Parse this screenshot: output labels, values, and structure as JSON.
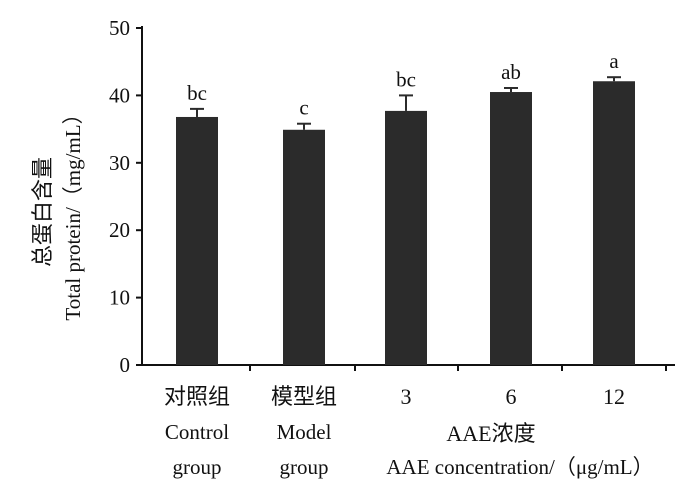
{
  "chart_data": {
    "type": "bar",
    "ylabel_cn": "总蛋白含量",
    "ylabel": "Total protein/（mg/mL）",
    "ylim": [
      0,
      50
    ],
    "yticks": [
      0,
      10,
      20,
      30,
      40,
      50
    ],
    "categories": [
      {
        "lines": [
          "对照组",
          "Control",
          "group"
        ]
      },
      {
        "lines": [
          "模型组",
          "Model",
          "group"
        ]
      },
      {
        "lines": [
          "3"
        ]
      },
      {
        "lines": [
          "6"
        ]
      },
      {
        "lines": [
          "12"
        ]
      }
    ],
    "values": [
      36.8,
      34.9,
      37.7,
      40.5,
      42.1
    ],
    "errors": [
      1.2,
      0.9,
      2.3,
      0.6,
      0.6
    ],
    "sig_labels": [
      "bc",
      "c",
      "bc",
      "ab",
      "a"
    ],
    "group_label_cn": "AAE浓度",
    "group_label": "AAE concentration/（μg/mL）",
    "bar_color": "#2b2b2b"
  }
}
